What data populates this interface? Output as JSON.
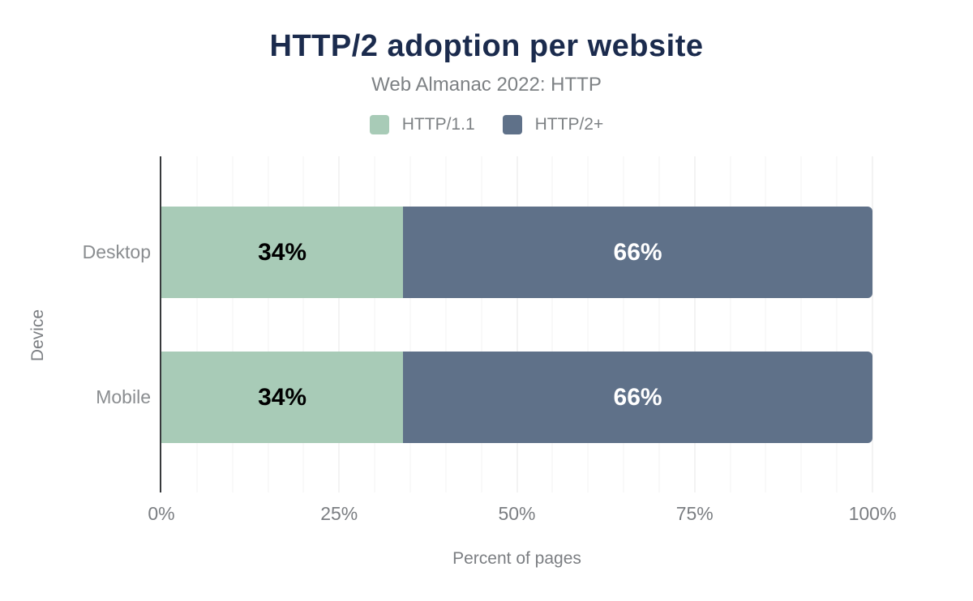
{
  "header": {
    "title": "HTTP/2 adoption per website",
    "subtitle": "Web Almanac 2022: HTTP"
  },
  "legend": [
    {
      "label": "HTTP/1.1",
      "color": "#a8cbb7"
    },
    {
      "label": "HTTP/2+",
      "color": "#5f7189"
    }
  ],
  "axes": {
    "x_title": "Percent of pages",
    "y_title": "Device",
    "x_ticks": [
      {
        "label": "0%",
        "value": 0
      },
      {
        "label": "25%",
        "value": 25
      },
      {
        "label": "50%",
        "value": 50
      },
      {
        "label": "75%",
        "value": 75
      },
      {
        "label": "100%",
        "value": 100
      }
    ]
  },
  "chart_data": {
    "type": "bar",
    "orientation": "horizontal",
    "stacked": true,
    "title": "HTTP/2 adoption per website",
    "subtitle": "Web Almanac 2022: HTTP",
    "categories": [
      "Desktop",
      "Mobile"
    ],
    "series": [
      {
        "name": "HTTP/1.1",
        "color": "#a8cbb7",
        "label_color": "#000000",
        "values": [
          34,
          34
        ],
        "data_labels": [
          "34%",
          "34%"
        ]
      },
      {
        "name": "HTTP/2+",
        "color": "#5f7189",
        "label_color": "#ffffff",
        "values": [
          66,
          66
        ],
        "data_labels": [
          "66%",
          "66%"
        ]
      }
    ],
    "xlabel": "Percent of pages",
    "ylabel": "Device",
    "xlim": [
      0,
      100
    ],
    "x_tick_step": 25,
    "minor_grid_step": 5,
    "grid": true,
    "legend_position": "top"
  }
}
